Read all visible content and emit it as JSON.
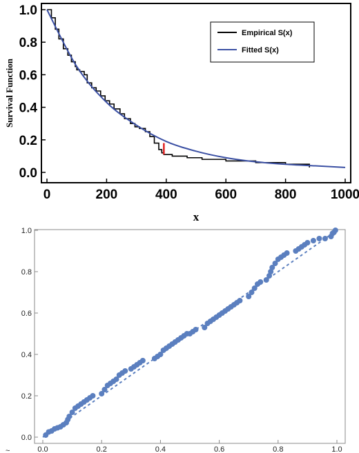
{
  "chart_data": [
    {
      "type": "line",
      "xlabel": "x",
      "ylabel": "Survival Function",
      "xlim": [
        0,
        1000
      ],
      "ylim": [
        0,
        1.05
      ],
      "xticks": [
        "0",
        "200",
        "400",
        "600",
        "800",
        "1000"
      ],
      "yticks": [
        "0.0",
        "0.2",
        "0.4",
        "0.6",
        "0.8",
        "1.0"
      ],
      "legend_position": "top-right",
      "series": [
        {
          "name": "Empirical S(x)",
          "color": "#000000",
          "style": "step",
          "x": [
            0,
            15,
            28,
            40,
            55,
            70,
            82,
            95,
            100,
            110,
            125,
            135,
            150,
            165,
            180,
            195,
            210,
            225,
            245,
            260,
            280,
            295,
            310,
            330,
            345,
            360,
            375,
            385,
            392,
            420,
            470,
            520,
            600,
            700,
            800,
            880
          ],
          "y": [
            1.0,
            0.95,
            0.88,
            0.82,
            0.76,
            0.72,
            0.68,
            0.65,
            0.63,
            0.62,
            0.6,
            0.55,
            0.52,
            0.5,
            0.47,
            0.44,
            0.42,
            0.39,
            0.36,
            0.33,
            0.3,
            0.28,
            0.27,
            0.25,
            0.22,
            0.18,
            0.14,
            0.12,
            0.11,
            0.1,
            0.09,
            0.08,
            0.07,
            0.06,
            0.05,
            0.03
          ]
        },
        {
          "name": "Fitted S(x)",
          "color": "#3a4fa3",
          "style": "smooth",
          "x": [
            0,
            100,
            200,
            300,
            400,
            500,
            600,
            700,
            800,
            900,
            1000
          ],
          "y": [
            1.0,
            0.65,
            0.43,
            0.29,
            0.19,
            0.13,
            0.09,
            0.065,
            0.05,
            0.04,
            0.03
          ]
        }
      ],
      "annotation_color": "#e02020",
      "annotation_x": 392,
      "annotation_y": [
        0.11,
        0.18
      ]
    },
    {
      "type": "scatter",
      "xlim": [
        0,
        1
      ],
      "ylim": [
        0,
        1
      ],
      "xticks": [
        "0.0",
        "0.2",
        "0.4",
        "0.6",
        "0.8",
        "1.0"
      ],
      "yticks": [
        "0.0",
        "0.2",
        "0.4",
        "0.6",
        "0.8",
        "1.0"
      ],
      "point_color": "#5b7fbf",
      "reference_line": [
        [
          0,
          0
        ],
        [
          1,
          1
        ]
      ],
      "points": [
        [
          0.01,
          0.01
        ],
        [
          0.02,
          0.025
        ],
        [
          0.03,
          0.03
        ],
        [
          0.04,
          0.04
        ],
        [
          0.05,
          0.045
        ],
        [
          0.06,
          0.05
        ],
        [
          0.07,
          0.06
        ],
        [
          0.08,
          0.07
        ],
        [
          0.085,
          0.085
        ],
        [
          0.09,
          0.1
        ],
        [
          0.1,
          0.12
        ],
        [
          0.11,
          0.14
        ],
        [
          0.12,
          0.15
        ],
        [
          0.13,
          0.16
        ],
        [
          0.14,
          0.17
        ],
        [
          0.15,
          0.18
        ],
        [
          0.16,
          0.19
        ],
        [
          0.17,
          0.2
        ],
        [
          0.2,
          0.21
        ],
        [
          0.21,
          0.23
        ],
        [
          0.22,
          0.25
        ],
        [
          0.23,
          0.26
        ],
        [
          0.24,
          0.27
        ],
        [
          0.25,
          0.28
        ],
        [
          0.26,
          0.3
        ],
        [
          0.27,
          0.31
        ],
        [
          0.28,
          0.32
        ],
        [
          0.3,
          0.33
        ],
        [
          0.31,
          0.34
        ],
        [
          0.32,
          0.35
        ],
        [
          0.33,
          0.36
        ],
        [
          0.34,
          0.37
        ],
        [
          0.38,
          0.38
        ],
        [
          0.39,
          0.39
        ],
        [
          0.4,
          0.4
        ],
        [
          0.41,
          0.42
        ],
        [
          0.42,
          0.43
        ],
        [
          0.43,
          0.44
        ],
        [
          0.44,
          0.45
        ],
        [
          0.45,
          0.46
        ],
        [
          0.46,
          0.47
        ],
        [
          0.47,
          0.48
        ],
        [
          0.48,
          0.49
        ],
        [
          0.49,
          0.5
        ],
        [
          0.5,
          0.5
        ],
        [
          0.51,
          0.51
        ],
        [
          0.52,
          0.52
        ],
        [
          0.55,
          0.53
        ],
        [
          0.56,
          0.55
        ],
        [
          0.57,
          0.56
        ],
        [
          0.58,
          0.57
        ],
        [
          0.59,
          0.58
        ],
        [
          0.6,
          0.59
        ],
        [
          0.61,
          0.6
        ],
        [
          0.62,
          0.61
        ],
        [
          0.63,
          0.62
        ],
        [
          0.64,
          0.63
        ],
        [
          0.65,
          0.64
        ],
        [
          0.66,
          0.65
        ],
        [
          0.67,
          0.66
        ],
        [
          0.7,
          0.68
        ],
        [
          0.71,
          0.7
        ],
        [
          0.72,
          0.72
        ],
        [
          0.73,
          0.74
        ],
        [
          0.74,
          0.75
        ],
        [
          0.76,
          0.76
        ],
        [
          0.77,
          0.78
        ],
        [
          0.775,
          0.8
        ],
        [
          0.78,
          0.82
        ],
        [
          0.79,
          0.84
        ],
        [
          0.8,
          0.86
        ],
        [
          0.81,
          0.87
        ],
        [
          0.82,
          0.88
        ],
        [
          0.83,
          0.89
        ],
        [
          0.86,
          0.9
        ],
        [
          0.87,
          0.91
        ],
        [
          0.88,
          0.92
        ],
        [
          0.89,
          0.93
        ],
        [
          0.9,
          0.94
        ],
        [
          0.92,
          0.95
        ],
        [
          0.94,
          0.96
        ],
        [
          0.96,
          0.96
        ],
        [
          0.98,
          0.97
        ],
        [
          0.985,
          0.985
        ],
        [
          0.99,
          0.99
        ],
        [
          0.995,
          1.0
        ]
      ]
    }
  ],
  "footer_glyph": "~"
}
